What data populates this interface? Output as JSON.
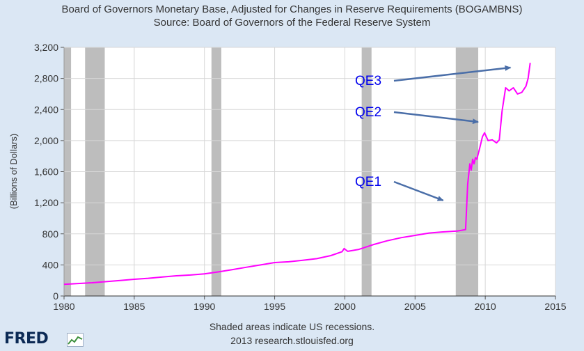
{
  "title_line1": "Board of Governors Monetary Base, Adjusted for Changes in Reserve Requirements (BOGAMBNS)",
  "title_line2": "Source: Board of Governors of the Federal Reserve System",
  "footer_note": "Shaded areas indicate US recessions.",
  "footer_source": "2013 research.stlouisfed.org",
  "logo_text": "FRED",
  "colors": {
    "background": "#dbe7f4",
    "plot_bg": "#ffffff",
    "line": "#ff00ff",
    "recession": "#bdbdbd",
    "annotation_text": "#0000ee",
    "arrow": "#4a6ea8"
  },
  "chart_data": {
    "type": "line",
    "title": "Board of Governors Monetary Base, Adjusted for Changes in Reserve Requirements (BOGAMBNS)",
    "subtitle": "Source: Board of Governors of the Federal Reserve System",
    "xlabel": "",
    "ylabel": "(Billions of Dollars)",
    "xlim": [
      1980,
      2015
    ],
    "ylim": [
      0,
      3200
    ],
    "x_ticks": [
      1980,
      1985,
      1990,
      1995,
      2000,
      2005,
      2010,
      2015
    ],
    "y_ticks": [
      0,
      400,
      800,
      1200,
      1600,
      2000,
      2400,
      2800,
      3200
    ],
    "y_tick_labels": [
      "0",
      "400",
      "800",
      "1,200",
      "1,600",
      "2,000",
      "2,400",
      "2,800",
      "3,200"
    ],
    "grid": true,
    "legend": "none",
    "recessions": [
      [
        1980.0,
        1980.5
      ],
      [
        1981.5,
        1982.9
      ],
      [
        1990.5,
        1991.2
      ],
      [
        2001.2,
        2001.9
      ],
      [
        2007.9,
        2009.5
      ]
    ],
    "annotations": [
      {
        "text": "QE1",
        "x": 2007.0,
        "y": 1230
      },
      {
        "text": "QE2",
        "x": 2009.5,
        "y": 2240
      },
      {
        "text": "QE3",
        "x": 2011.8,
        "y": 2940
      }
    ],
    "series": [
      {
        "x": [
          1980.0,
          1981.0,
          1982.0,
          1983.0,
          1984.0,
          1985.0,
          1986.0,
          1987.0,
          1988.0,
          1989.0,
          1990.0,
          1991.0,
          1992.0,
          1993.0,
          1994.0,
          1995.0,
          1996.0,
          1997.0,
          1998.0,
          1999.0,
          1999.8,
          1999.95,
          2000.2,
          2001.0,
          2002.0,
          2003.0,
          2004.0,
          2005.0,
          2006.0,
          2007.0,
          2008.0,
          2008.6,
          2008.75,
          2008.9,
          2009.0,
          2009.1,
          2009.2,
          2009.3,
          2009.4,
          2009.6,
          2009.8,
          2009.95,
          2010.2,
          2010.5,
          2010.8,
          2011.0,
          2011.2,
          2011.45,
          2011.7,
          2012.0,
          2012.3,
          2012.6,
          2012.9,
          2013.05,
          2013.2
        ],
        "values": [
          150,
          160,
          170,
          185,
          200,
          215,
          228,
          245,
          260,
          270,
          285,
          310,
          340,
          370,
          400,
          430,
          440,
          460,
          480,
          520,
          570,
          610,
          575,
          600,
          660,
          710,
          750,
          780,
          810,
          825,
          835,
          855,
          1440,
          1700,
          1620,
          1760,
          1700,
          1780,
          1760,
          1900,
          2050,
          2100,
          2000,
          2010,
          1970,
          2010,
          2380,
          2680,
          2640,
          2680,
          2600,
          2620,
          2700,
          2800,
          3000
        ]
      }
    ]
  }
}
